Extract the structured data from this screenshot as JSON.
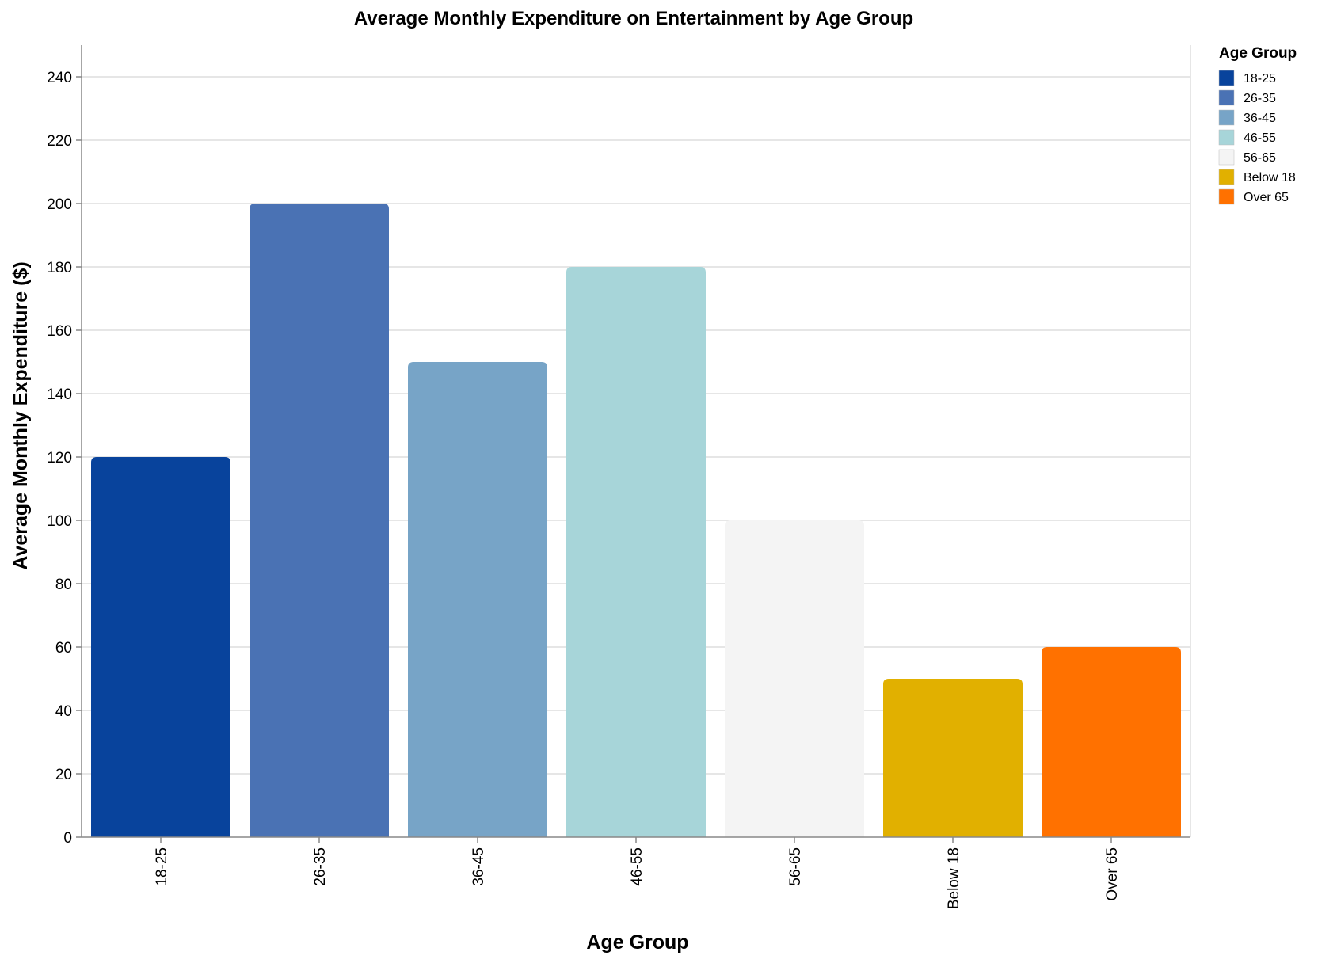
{
  "chart_data": {
    "type": "bar",
    "title": "Average Monthly Expenditure on Entertainment by Age Group",
    "xlabel": "Age Group",
    "ylabel": "Average Monthly Expenditure ($)",
    "categories": [
      "18-25",
      "26-35",
      "36-45",
      "46-55",
      "56-65",
      "Below 18",
      "Over 65"
    ],
    "values": [
      120,
      200,
      150,
      180,
      100,
      50,
      60
    ],
    "colors": [
      "#08439c",
      "#4a72b4",
      "#77a4c7",
      "#a7d5d9",
      "#f4f4f4",
      "#e1b000",
      "#ff7100"
    ],
    "ylim": [
      0,
      250
    ],
    "yticks": [
      0,
      20,
      40,
      60,
      80,
      100,
      120,
      140,
      160,
      180,
      200,
      220,
      240
    ],
    "grid": true,
    "legend": {
      "title": "Age Group",
      "placement": "top-right",
      "entries": [
        "18-25",
        "26-35",
        "36-45",
        "46-55",
        "56-65",
        "Below 18",
        "Over 65"
      ]
    }
  }
}
